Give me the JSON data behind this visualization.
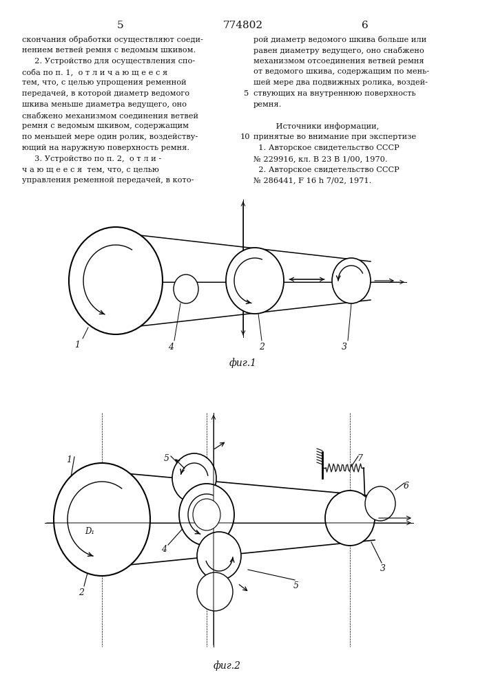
{
  "title_center": "774802",
  "page_left": "5",
  "page_right": "6",
  "text_left_col": [
    "скончания обработки осуществляют соеди-",
    "нением ветвей ремня с ведомым шкивом.",
    "     2. Устройство для осуществления спо-",
    "соба по п. 1,  о т л и ч а ю щ е е с я",
    "тем, что, с целью упрощения ременной",
    "передачей, в которой диаметр ведомого",
    "шкива меньше диаметра ведущего, оно",
    "снабжено механизмом соединения ветвей",
    "ремня с ведомым шкивом, содержащим",
    "по меньшей мере один ролик, воздейству-",
    "ющий на наружную поверхность ремня.",
    "     3. Устройство по п. 2,  о т л и -",
    "ч а ю щ е е с я  тем, что, с целью",
    "управления ременной передачей, в кото-"
  ],
  "text_right_col": [
    "рой диаметр ведомого шкива больше или",
    "равен диаметру ведущего, оно снабжено",
    "механизмом отсоединения ветвей ремня",
    "от ведомого шкива, содержащим по мень-",
    "шей мере два подвижных ролика, воздей-",
    "ствующих на внутреннюю поверхность",
    "ремня.",
    "",
    "         Источники информации,",
    "принятые во внимание при экспертизе",
    "  1. Авторское свидетельство СССР",
    "№ 229916, кл. В 23 В 1/00, 1970.",
    "  2. Авторское свидетельство СССР",
    "№ 286441, F 16 h 7/02, 1971."
  ],
  "fig1_caption": "фиг.1",
  "fig2_caption": "фиг.2",
  "bg_color": "#ffffff",
  "line_color": "#222222",
  "text_color": "#111111"
}
